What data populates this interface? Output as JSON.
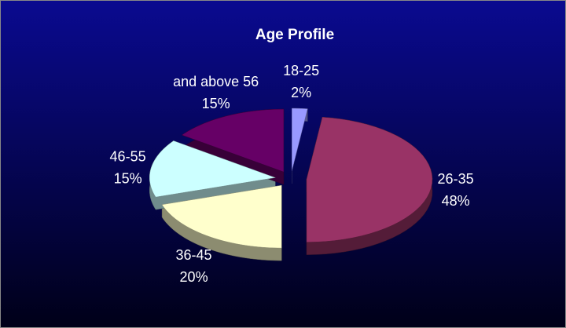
{
  "chart_data": {
    "type": "pie",
    "title": "Age Profile",
    "categories": [
      "18-25",
      "26-35",
      "36-45",
      "46-55",
      "and above 56"
    ],
    "values": [
      2,
      48,
      20,
      15,
      15
    ],
    "value_labels": [
      "2%",
      "48%",
      "20%",
      "15%",
      "15%"
    ],
    "colors": [
      "#9999ff",
      "#993366",
      "#ffffcc",
      "#ccffff",
      "#660066"
    ]
  }
}
